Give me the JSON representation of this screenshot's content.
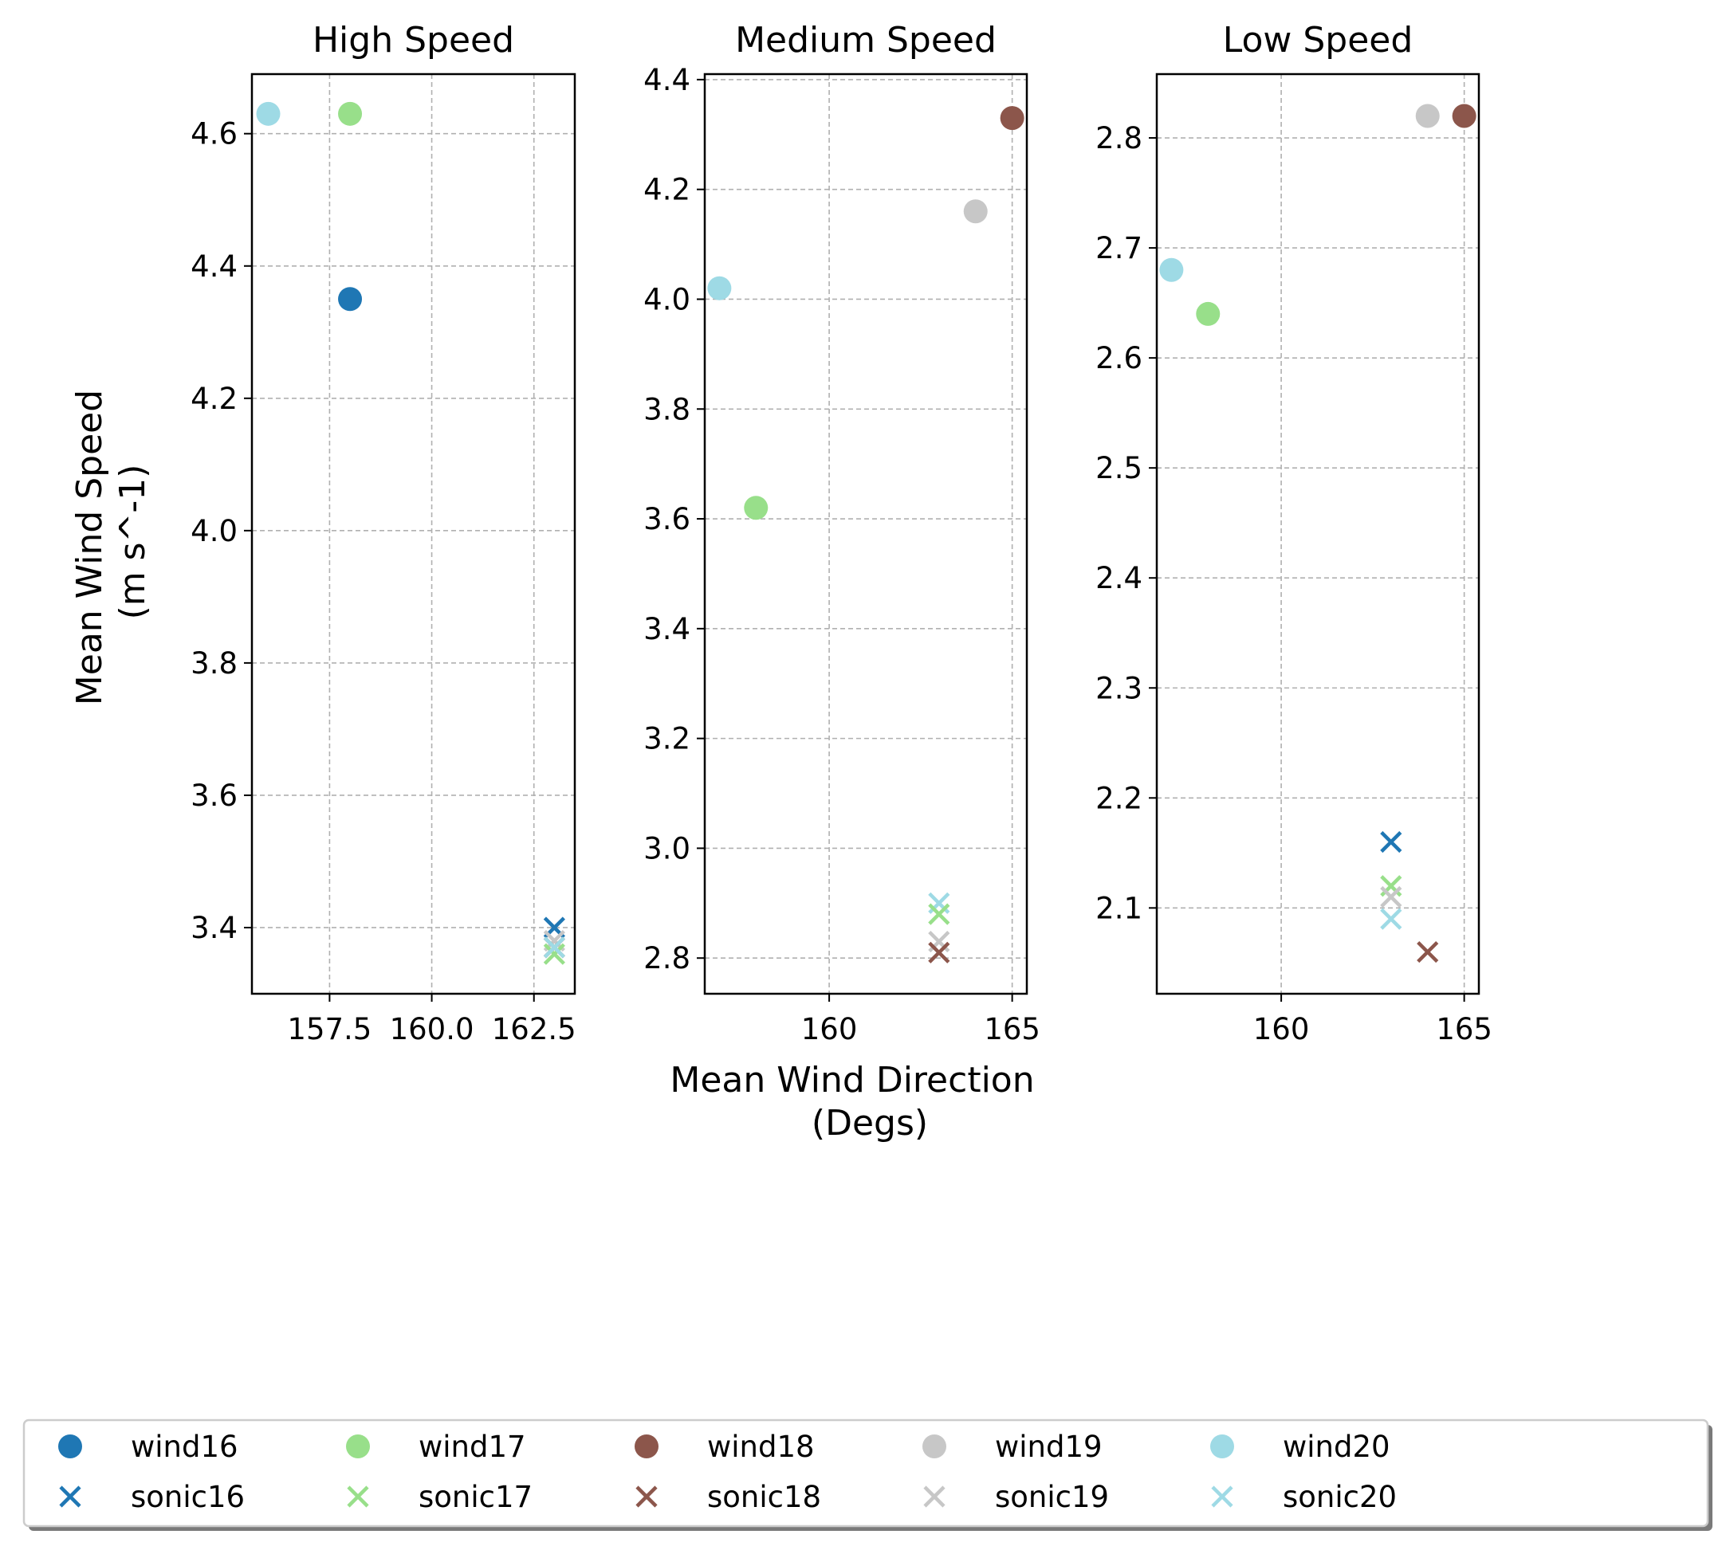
{
  "figure": {
    "ylabel": [
      "Mean Wind Speed",
      "(m s^-1)"
    ],
    "xlabel": [
      "Mean Wind Direction",
      "(Degs)"
    ]
  },
  "colors": {
    "wind16": "#1f77b4",
    "wind17": "#98df8a",
    "wind18": "#8c564b",
    "wind19": "#c7c7c7",
    "wind20": "#9edae5",
    "sonic16": "#1f77b4",
    "sonic17": "#98df8a",
    "sonic18": "#8c564b",
    "sonic19": "#c7c7c7",
    "sonic20": "#9edae5"
  },
  "legend": {
    "placement": "bottom",
    "columns": 6,
    "entries": [
      {
        "label": "wind16",
        "marker": "circle",
        "color": "#1f77b4"
      },
      {
        "label": "sonic16",
        "marker": "x",
        "color": "#1f77b4"
      },
      {
        "label": "wind17",
        "marker": "circle",
        "color": "#98df8a"
      },
      {
        "label": "sonic17",
        "marker": "x",
        "color": "#98df8a"
      },
      {
        "label": "wind18",
        "marker": "circle",
        "color": "#8c564b"
      },
      {
        "label": "sonic18",
        "marker": "x",
        "color": "#8c564b"
      },
      {
        "label": "wind19",
        "marker": "circle",
        "color": "#c7c7c7"
      },
      {
        "label": "sonic19",
        "marker": "x",
        "color": "#c7c7c7"
      },
      {
        "label": "wind20",
        "marker": "circle",
        "color": "#9edae5"
      },
      {
        "label": "sonic20",
        "marker": "x",
        "color": "#9edae5"
      }
    ]
  },
  "chart_data": [
    {
      "type": "scatter",
      "title": "High Speed",
      "grid": true,
      "xlim": [
        155.6,
        163.5
      ],
      "ylim": [
        3.3,
        4.69
      ],
      "xticks": [
        157.5,
        160.0,
        162.5
      ],
      "xtick_labels": [
        "157.5",
        "160.0",
        "162.5"
      ],
      "yticks": [
        3.4,
        3.6,
        3.8,
        4.0,
        4.2,
        4.4,
        4.6
      ],
      "ytick_labels": [
        "3.4",
        "3.6",
        "3.8",
        "4.0",
        "4.2",
        "4.4",
        "4.6"
      ],
      "series": [
        {
          "name": "wind16",
          "marker": "circle",
          "x": [
            158
          ],
          "y": [
            4.35
          ]
        },
        {
          "name": "wind17",
          "marker": "circle",
          "x": [
            158
          ],
          "y": [
            4.63
          ]
        },
        {
          "name": "wind20",
          "marker": "circle",
          "x": [
            156
          ],
          "y": [
            4.63
          ]
        },
        {
          "name": "sonic16",
          "marker": "x",
          "x": [
            163
          ],
          "y": [
            3.4
          ]
        },
        {
          "name": "sonic19",
          "marker": "x",
          "x": [
            163
          ],
          "y": [
            3.38
          ]
        },
        {
          "name": "sonic18",
          "marker": "x",
          "x": [
            163
          ],
          "y": [
            3.37
          ]
        },
        {
          "name": "sonic17",
          "marker": "x",
          "x": [
            163
          ],
          "y": [
            3.36
          ]
        },
        {
          "name": "sonic20",
          "marker": "x",
          "x": [
            163
          ],
          "y": [
            3.37
          ]
        }
      ]
    },
    {
      "type": "scatter",
      "title": "Medium Speed",
      "grid": true,
      "xlim": [
        156.6,
        165.4
      ],
      "ylim": [
        2.735,
        4.41
      ],
      "xticks": [
        160,
        165
      ],
      "xtick_labels": [
        "160",
        "165"
      ],
      "yticks": [
        2.8,
        3.0,
        3.2,
        3.4,
        3.6,
        3.8,
        4.0,
        4.2,
        4.4
      ],
      "ytick_labels": [
        "2.8",
        "3.0",
        "3.2",
        "3.4",
        "3.6",
        "3.8",
        "4.0",
        "4.2",
        "4.4"
      ],
      "series": [
        {
          "name": "wind17",
          "marker": "circle",
          "x": [
            158
          ],
          "y": [
            3.62
          ]
        },
        {
          "name": "wind18",
          "marker": "circle",
          "x": [
            165
          ],
          "y": [
            4.33
          ]
        },
        {
          "name": "wind19",
          "marker": "circle",
          "x": [
            164
          ],
          "y": [
            4.16
          ]
        },
        {
          "name": "wind20",
          "marker": "circle",
          "x": [
            157
          ],
          "y": [
            4.02
          ]
        },
        {
          "name": "sonic20",
          "marker": "x",
          "x": [
            163
          ],
          "y": [
            2.9
          ]
        },
        {
          "name": "sonic17",
          "marker": "x",
          "x": [
            163
          ],
          "y": [
            2.88
          ]
        },
        {
          "name": "sonic19",
          "marker": "x",
          "x": [
            163
          ],
          "y": [
            2.83
          ]
        },
        {
          "name": "sonic18",
          "marker": "x",
          "x": [
            163
          ],
          "y": [
            2.81
          ]
        }
      ]
    },
    {
      "type": "scatter",
      "title": "Low Speed",
      "grid": true,
      "xlim": [
        156.6,
        165.4
      ],
      "ylim": [
        2.022,
        2.858
      ],
      "xticks": [
        160,
        165
      ],
      "xtick_labels": [
        "160",
        "165"
      ],
      "yticks": [
        2.1,
        2.2,
        2.3,
        2.4,
        2.5,
        2.6,
        2.7,
        2.8
      ],
      "ytick_labels": [
        "2.1",
        "2.2",
        "2.3",
        "2.4",
        "2.5",
        "2.6",
        "2.7",
        "2.8"
      ],
      "series": [
        {
          "name": "wind17",
          "marker": "circle",
          "x": [
            158
          ],
          "y": [
            2.64
          ]
        },
        {
          "name": "wind18",
          "marker": "circle",
          "x": [
            165
          ],
          "y": [
            2.82
          ]
        },
        {
          "name": "wind19",
          "marker": "circle",
          "x": [
            164
          ],
          "y": [
            2.82
          ]
        },
        {
          "name": "wind20",
          "marker": "circle",
          "x": [
            157
          ],
          "y": [
            2.68
          ]
        },
        {
          "name": "sonic16",
          "marker": "x",
          "x": [
            163
          ],
          "y": [
            2.16
          ]
        },
        {
          "name": "sonic17",
          "marker": "x",
          "x": [
            163
          ],
          "y": [
            2.12
          ]
        },
        {
          "name": "sonic19",
          "marker": "x",
          "x": [
            163
          ],
          "y": [
            2.11
          ]
        },
        {
          "name": "sonic20",
          "marker": "x",
          "x": [
            163
          ],
          "y": [
            2.09
          ]
        },
        {
          "name": "sonic18",
          "marker": "x",
          "x": [
            164
          ],
          "y": [
            2.06
          ]
        }
      ]
    }
  ]
}
